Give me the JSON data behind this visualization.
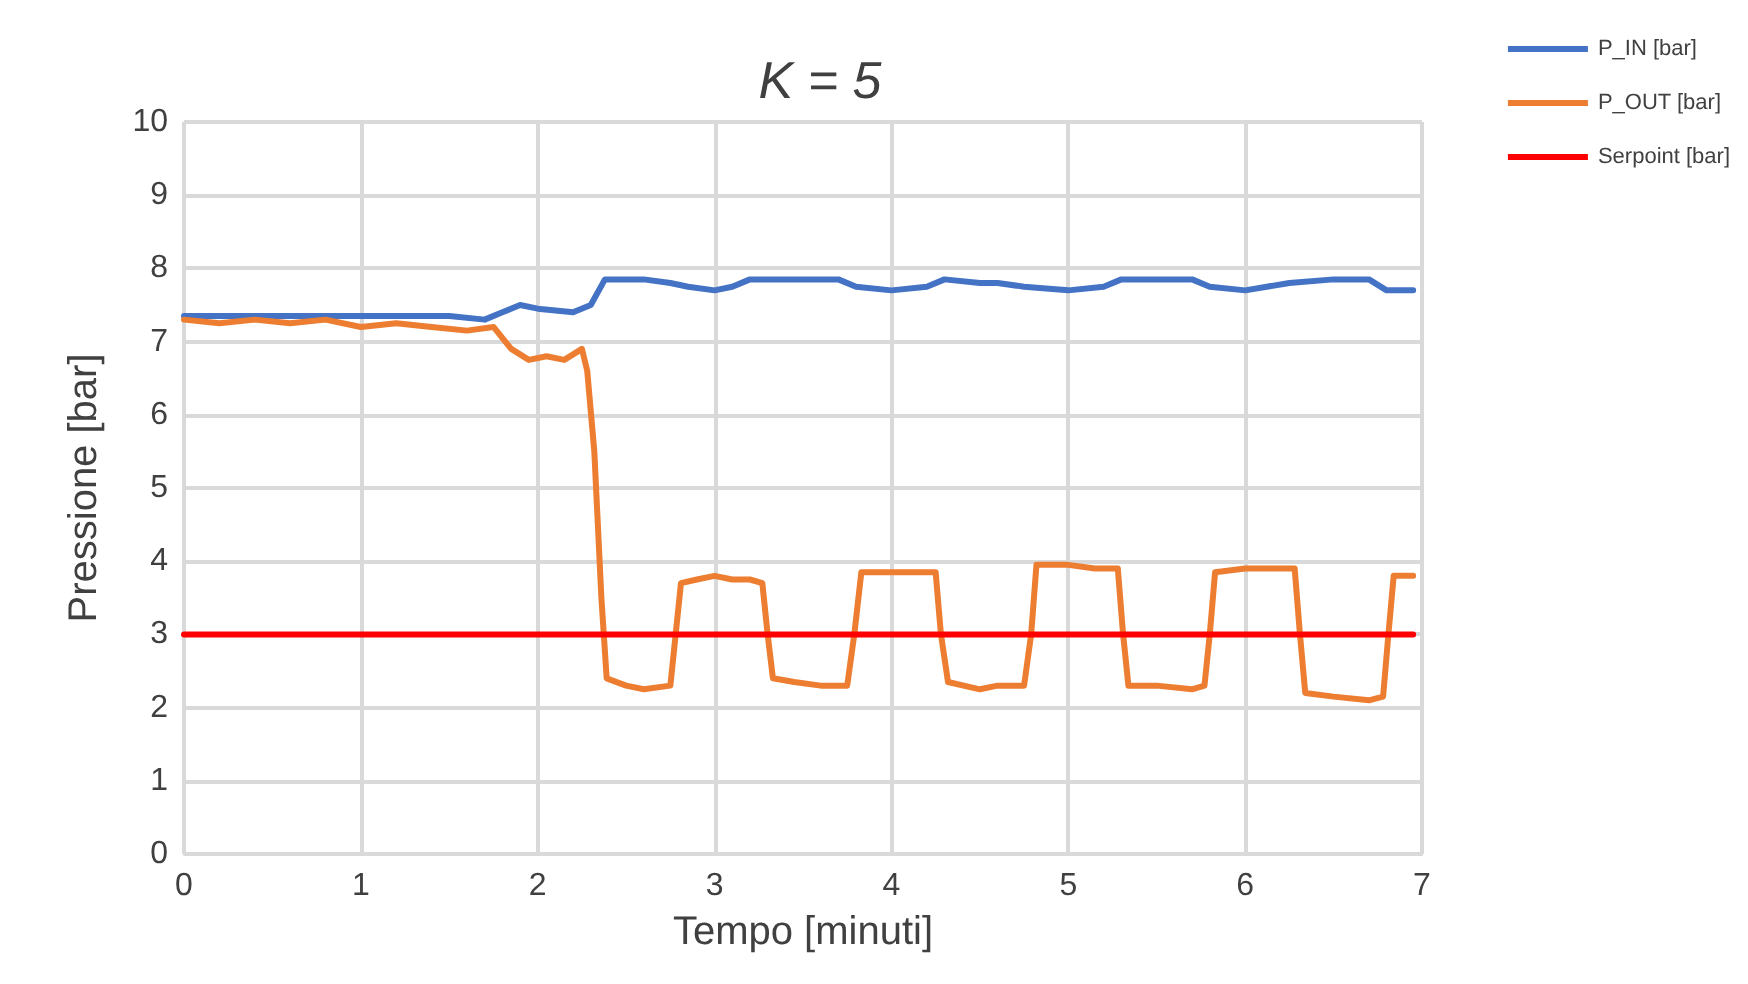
{
  "chart_data": {
    "type": "line",
    "title": "K = 5",
    "xlabel": "Tempo [minuti]",
    "ylabel": "Pressione [bar]",
    "xlim": [
      0,
      7
    ],
    "xticks": [
      0,
      1,
      2,
      3,
      4,
      5,
      6,
      7
    ],
    "ylim": [
      0,
      10
    ],
    "yticks": [
      0,
      1,
      2,
      3,
      4,
      5,
      6,
      7,
      8,
      9,
      10
    ],
    "grid": true,
    "legend": "top right",
    "marker": "none",
    "line_style": "solid",
    "series": [
      {
        "name": "P_IN [bar]",
        "color": "#4472c4",
        "x": [
          0,
          0.3,
          0.6,
          0.9,
          1.2,
          1.5,
          1.7,
          1.8,
          1.9,
          2.0,
          2.2,
          2.3,
          2.38,
          2.6,
          2.75,
          2.85,
          3.0,
          3.1,
          3.2,
          3.5,
          3.7,
          3.8,
          4.0,
          4.2,
          4.3,
          4.5,
          4.6,
          4.75,
          5.0,
          5.2,
          5.3,
          5.5,
          5.7,
          5.8,
          6.0,
          6.25,
          6.5,
          6.7,
          6.8,
          6.95
        ],
        "values": [
          7.35,
          7.35,
          7.35,
          7.35,
          7.35,
          7.35,
          7.3,
          7.4,
          7.5,
          7.45,
          7.4,
          7.5,
          7.85,
          7.85,
          7.8,
          7.75,
          7.7,
          7.75,
          7.85,
          7.85,
          7.85,
          7.75,
          7.7,
          7.75,
          7.85,
          7.8,
          7.8,
          7.75,
          7.7,
          7.75,
          7.85,
          7.85,
          7.85,
          7.75,
          7.7,
          7.8,
          7.85,
          7.85,
          7.7,
          7.7
        ]
      },
      {
        "name": "P_OUT [bar]",
        "color": "#ed7d31",
        "x": [
          0,
          0.2,
          0.4,
          0.6,
          0.8,
          1.0,
          1.2,
          1.4,
          1.6,
          1.75,
          1.85,
          1.95,
          2.05,
          2.15,
          2.25,
          2.28,
          2.32,
          2.36,
          2.39,
          2.5,
          2.6,
          2.75,
          2.78,
          2.81,
          2.9,
          3.0,
          3.1,
          3.2,
          3.27,
          3.3,
          3.33,
          3.45,
          3.6,
          3.75,
          3.79,
          3.83,
          4.0,
          4.1,
          4.25,
          4.28,
          4.32,
          4.5,
          4.6,
          4.75,
          4.79,
          4.82,
          5.0,
          5.15,
          5.28,
          5.31,
          5.34,
          5.5,
          5.7,
          5.77,
          5.8,
          5.83,
          6.0,
          6.15,
          6.28,
          6.31,
          6.34,
          6.5,
          6.7,
          6.78,
          6.81,
          6.84,
          6.95
        ],
        "values": [
          7.3,
          7.25,
          7.3,
          7.25,
          7.3,
          7.2,
          7.25,
          7.2,
          7.15,
          7.2,
          6.9,
          6.75,
          6.8,
          6.75,
          6.9,
          6.6,
          5.5,
          3.5,
          2.4,
          2.3,
          2.25,
          2.3,
          3.0,
          3.7,
          3.75,
          3.8,
          3.75,
          3.75,
          3.7,
          3.0,
          2.4,
          2.35,
          2.3,
          2.3,
          3.0,
          3.85,
          3.85,
          3.85,
          3.85,
          3.0,
          2.35,
          2.25,
          2.3,
          2.3,
          3.0,
          3.95,
          3.95,
          3.9,
          3.9,
          3.0,
          2.3,
          2.3,
          2.25,
          2.3,
          3.0,
          3.85,
          3.9,
          3.9,
          3.9,
          3.0,
          2.2,
          2.15,
          2.1,
          2.15,
          3.0,
          3.8,
          3.8
        ]
      },
      {
        "name": "Serpoint [bar]",
        "color": "#ff0000",
        "x": [
          0,
          6.95
        ],
        "values": [
          3,
          3
        ]
      }
    ]
  }
}
